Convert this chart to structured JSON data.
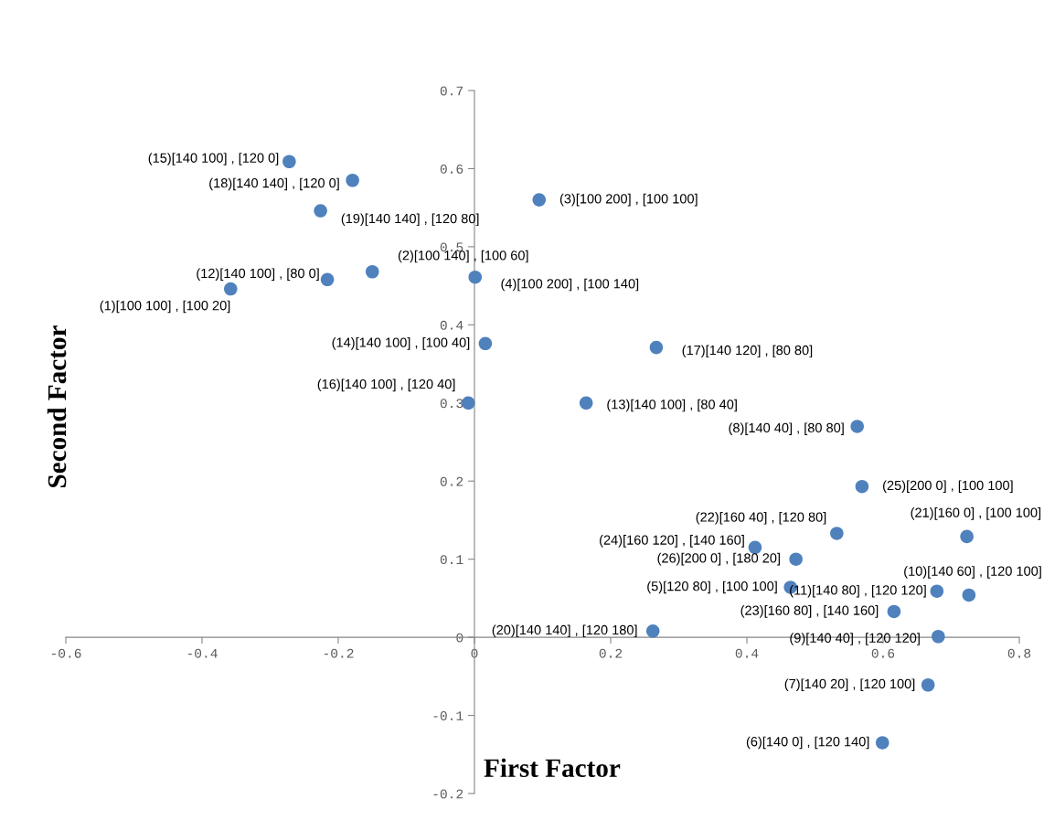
{
  "chart_data": {
    "type": "scatter",
    "xlabel": "First Factor",
    "ylabel": "Second Factor",
    "xlim": [
      -0.6,
      0.8
    ],
    "xticks": [
      -0.6,
      -0.4,
      -0.2,
      0,
      0.2,
      0.4,
      0.6,
      0.8
    ],
    "ylim": [
      -0.2,
      0.7
    ],
    "yticks": [
      -0.2,
      -0.1,
      0,
      0.1,
      0.2,
      0.3,
      0.4,
      0.5,
      0.6,
      0.7
    ],
    "grid": false,
    "marker": "circle",
    "series": [
      {
        "color": "#4f81bd",
        "x": [
          -0.358,
          -0.15,
          0.095,
          0.001,
          0.464,
          0.599,
          0.666,
          0.562,
          0.681,
          0.726,
          0.679,
          -0.216,
          0.164,
          0.016,
          -0.272,
          -0.009,
          0.267,
          -0.179,
          -0.226,
          0.262,
          0.723,
          0.532,
          0.616,
          0.412,
          0.569,
          0.472
        ],
        "values": [
          0.446,
          0.468,
          0.56,
          0.461,
          0.064,
          -0.135,
          -0.061,
          0.27,
          0.001,
          0.054,
          0.059,
          0.458,
          0.3,
          0.376,
          0.609,
          0.3,
          0.371,
          0.585,
          0.546,
          0.008,
          0.129,
          0.133,
          0.033,
          0.115,
          0.193,
          0.1
        ]
      }
    ],
    "annotations": [
      {
        "text": "(1)[100 100] , [100 20]",
        "x": -0.358,
        "y": 0.446
      },
      {
        "text": "(2)[100 140] , [100 60]",
        "x": -0.15,
        "y": 0.468
      },
      {
        "text": "(3)[100 200] , [100 100]",
        "x": 0.095,
        "y": 0.56
      },
      {
        "text": "(4)[100 200] , [100 140]",
        "x": 0.001,
        "y": 0.461
      },
      {
        "text": "(5)[120 80] , [100 100]",
        "x": 0.464,
        "y": 0.064
      },
      {
        "text": "(6)[140 0] , [120 140]",
        "x": 0.599,
        "y": -0.135
      },
      {
        "text": "(7)[140 20] , [120 100]",
        "x": 0.666,
        "y": -0.061
      },
      {
        "text": "(8)[140 40] , [80 80]",
        "x": 0.562,
        "y": 0.27
      },
      {
        "text": "(9)[140 40] , [120 120]",
        "x": 0.681,
        "y": 0.001
      },
      {
        "text": "(10)[140 60] , [120 100]",
        "x": 0.726,
        "y": 0.054
      },
      {
        "text": "(11)[140 80] , [120 120]",
        "x": 0.679,
        "y": 0.059
      },
      {
        "text": "(12)[140 100] , [80 0]",
        "x": -0.216,
        "y": 0.458
      },
      {
        "text": "(13)[140 100] , [80 40]",
        "x": 0.164,
        "y": 0.3
      },
      {
        "text": "(14)[140 100] , [100 40]",
        "x": 0.016,
        "y": 0.376
      },
      {
        "text": "(15)[140 100] , [120 0]",
        "x": -0.272,
        "y": 0.609
      },
      {
        "text": "(16)[140 100] , [120 40]",
        "x": -0.009,
        "y": 0.3
      },
      {
        "text": "(17)[140 120] , [80 80]",
        "x": 0.267,
        "y": 0.371
      },
      {
        "text": "(18)[140 140] , [120 0]",
        "x": -0.179,
        "y": 0.585
      },
      {
        "text": "(19)[140 140] , [120 80]",
        "x": -0.226,
        "y": 0.546
      },
      {
        "text": "(20)[140 140] , [120 180]",
        "x": 0.262,
        "y": 0.008
      },
      {
        "text": "(21)[160 0] , [100 100]",
        "x": 0.723,
        "y": 0.129
      },
      {
        "text": "(22)[160 40] , [120 80]",
        "x": 0.532,
        "y": 0.133
      },
      {
        "text": "(23)[160 80] , [140 160]",
        "x": 0.616,
        "y": 0.033
      },
      {
        "text": "(24)[160 120] , [140 160]",
        "x": 0.412,
        "y": 0.115
      },
      {
        "text": "(25)[200 0] , [100 100]",
        "x": 0.569,
        "y": 0.193
      },
      {
        "text": "(26)[200 0] , [180 20]",
        "x": 0.472,
        "y": 0.1
      }
    ]
  }
}
